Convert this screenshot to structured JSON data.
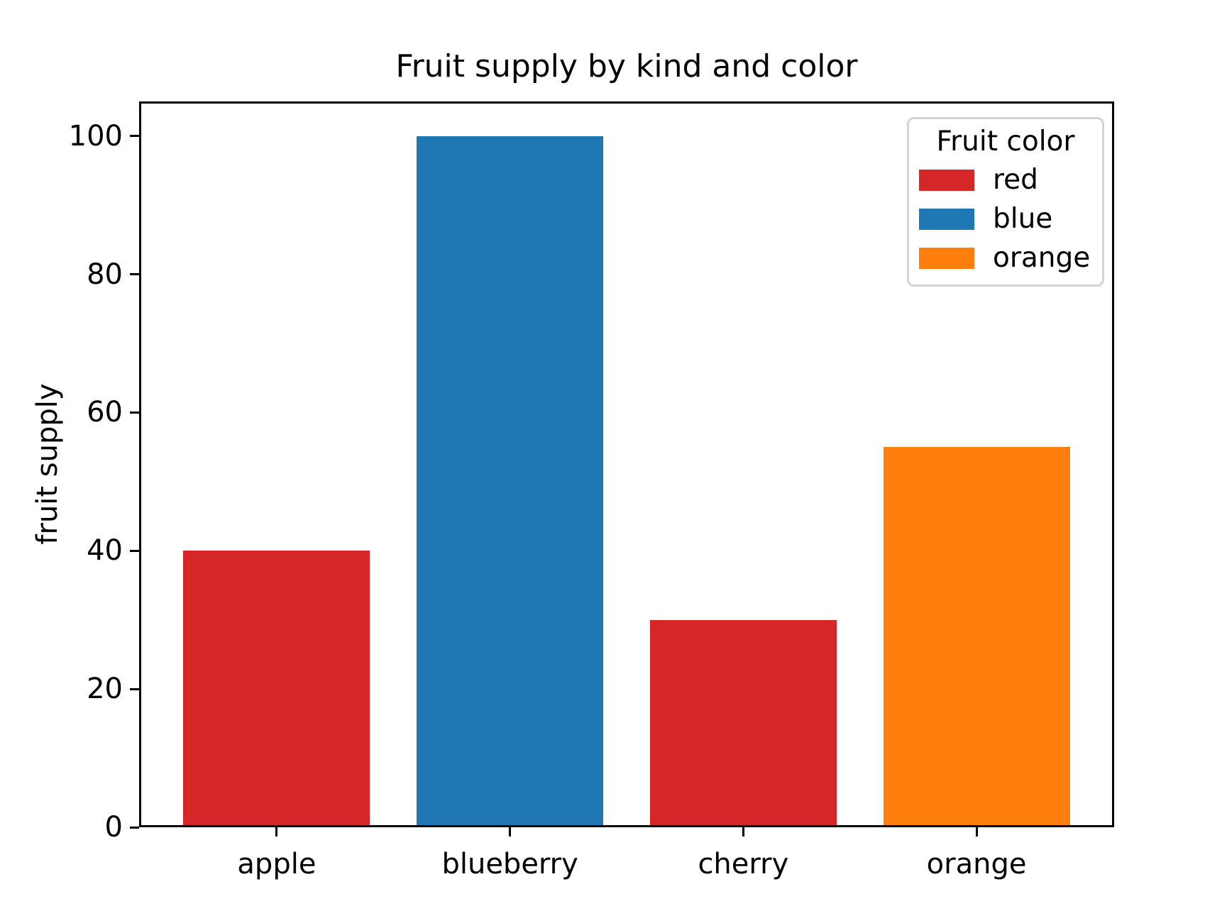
{
  "chart_data": {
    "type": "bar",
    "title": "Fruit supply by kind and color",
    "xlabel": "",
    "ylabel": "fruit supply",
    "categories": [
      "apple",
      "blueberry",
      "cherry",
      "orange"
    ],
    "values": [
      40,
      100,
      30,
      55
    ],
    "bar_colors": [
      "#d62728",
      "#1f77b4",
      "#d62728",
      "#ff7f0e"
    ],
    "bar_color_names": [
      "red",
      "blue",
      "red",
      "orange"
    ],
    "ylim": [
      0,
      105
    ],
    "yticks": [
      0,
      20,
      40,
      60,
      80,
      100
    ],
    "grid": false,
    "background_color": "#ffffff",
    "axis_color": "#000000",
    "legend": {
      "title": "Fruit color",
      "position": "upper right",
      "entries": [
        {
          "label": "red",
          "color": "#d62728"
        },
        {
          "label": "blue",
          "color": "#1f77b4"
        },
        {
          "label": "orange",
          "color": "#ff7f0e"
        }
      ]
    }
  }
}
